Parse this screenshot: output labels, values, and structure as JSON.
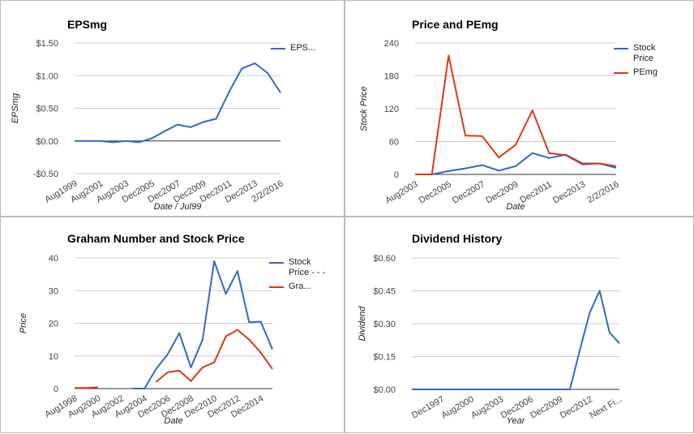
{
  "chart_data": [
    {
      "type": "line",
      "title": "EPSmg",
      "x_label": "Date / Jul99",
      "y_label": "EPSmg",
      "categories": [
        "Aug1999",
        null,
        "Aug2001",
        null,
        "Aug2003",
        null,
        "Dec2005",
        null,
        "Dec2007",
        null,
        "Dec2009",
        null,
        "Dec2011",
        null,
        "Dec2013",
        null,
        "2/2/2016"
      ],
      "series": [
        {
          "name": "EPS...",
          "color": "#3366cc",
          "values": [
            0,
            0,
            0,
            -0.02,
            0,
            -0.02,
            0.04,
            0.15,
            0.25,
            0.21,
            0.29,
            0.34,
            0.75,
            1.11,
            1.19,
            1.04,
            0.74
          ]
        }
      ],
      "ylim": [
        -0.5,
        1.5
      ],
      "yticks": [
        {
          "value": -0.5,
          "label": "-$0.50"
        },
        {
          "value": 0,
          "label": "$0.00"
        },
        {
          "value": 0.5,
          "label": "$0.50"
        },
        {
          "value": 1,
          "label": "$1.00"
        },
        {
          "value": 1.5,
          "label": "$1.50"
        }
      ],
      "grid": true,
      "legend": "right"
    },
    {
      "type": "line",
      "title": "Price and PEmg",
      "x_label": "Date",
      "y_label": "Stock Price",
      "categories": [
        "Aug2003",
        null,
        "Dec2005",
        null,
        "Dec2007",
        null,
        "Dec2009",
        null,
        "Dec2011",
        null,
        "Dec2013",
        null,
        "2/2/2016"
      ],
      "series": [
        {
          "name": "Stock Price",
          "color": "#3366cc",
          "values": [
            0,
            0,
            6,
            11,
            17,
            7,
            15,
            39,
            30,
            36,
            20,
            20,
            12
          ]
        },
        {
          "name": "PEmg",
          "color": "#dc3912",
          "values": [
            0,
            0,
            217,
            71,
            70,
            31,
            54,
            117,
            39,
            35,
            18,
            20,
            15
          ]
        }
      ],
      "ylim": [
        0,
        240
      ],
      "yticks": [
        0,
        60,
        120,
        180,
        240
      ],
      "grid": true,
      "legend": "right"
    },
    {
      "type": "line",
      "title": "Graham Number and Stock Price",
      "x_label": "Date",
      "y_label": "Price",
      "categories": [
        "Aug1998",
        null,
        "Aug2000",
        null,
        "Aug2002",
        null,
        "Aug2004",
        null,
        "Dec2006",
        null,
        "Dec2008",
        null,
        "Dec2010",
        null,
        "Dec2012",
        null,
        "Dec2014",
        null
      ],
      "series": [
        {
          "name": "Stock Price - - -",
          "color": "#3366cc",
          "values": [
            null,
            null,
            null,
            null,
            null,
            0,
            0,
            6,
            10.5,
            17,
            6.5,
            15,
            39,
            29,
            36,
            20.3,
            20.5,
            12
          ]
        },
        {
          "name": "Gra...",
          "color": "#dc3912",
          "values": [
            0.2,
            0.2,
            0.4,
            null,
            null,
            0.6,
            null,
            2,
            5,
            5.5,
            2.3,
            6.5,
            8,
            16,
            18,
            15,
            11,
            6
          ]
        }
      ],
      "ylim": [
        0,
        40
      ],
      "yticks": [
        0,
        10,
        20,
        30,
        40
      ],
      "grid": true,
      "legend": "right"
    },
    {
      "type": "line",
      "title": "Dividend History",
      "x_label": "Year",
      "y_label": "Dividend",
      "categories": [
        null,
        null,
        null,
        "Dec1997",
        null,
        null,
        "Aug2000",
        null,
        null,
        "Aug2003",
        null,
        null,
        "Dec2006",
        null,
        null,
        "Dec2009",
        null,
        null,
        "Dec2012",
        null,
        null,
        "Next Fi..."
      ],
      "series": [
        {
          "color": "#3366cc",
          "values": [
            0,
            0,
            0,
            0,
            0,
            0,
            0,
            0,
            0,
            0,
            0,
            0,
            0,
            0,
            0,
            0,
            0,
            0.18,
            0.35,
            0.45,
            0.26,
            0.21
          ]
        }
      ],
      "ylim": [
        0,
        0.6
      ],
      "yticks": [
        {
          "value": 0,
          "label": "$0.00"
        },
        {
          "value": 0.15,
          "label": "$0.15"
        },
        {
          "value": 0.3,
          "label": "$0.30"
        },
        {
          "value": 0.45,
          "label": "$0.45"
        },
        {
          "value": 0.6,
          "label": "$0.60"
        }
      ],
      "grid": true
    }
  ]
}
